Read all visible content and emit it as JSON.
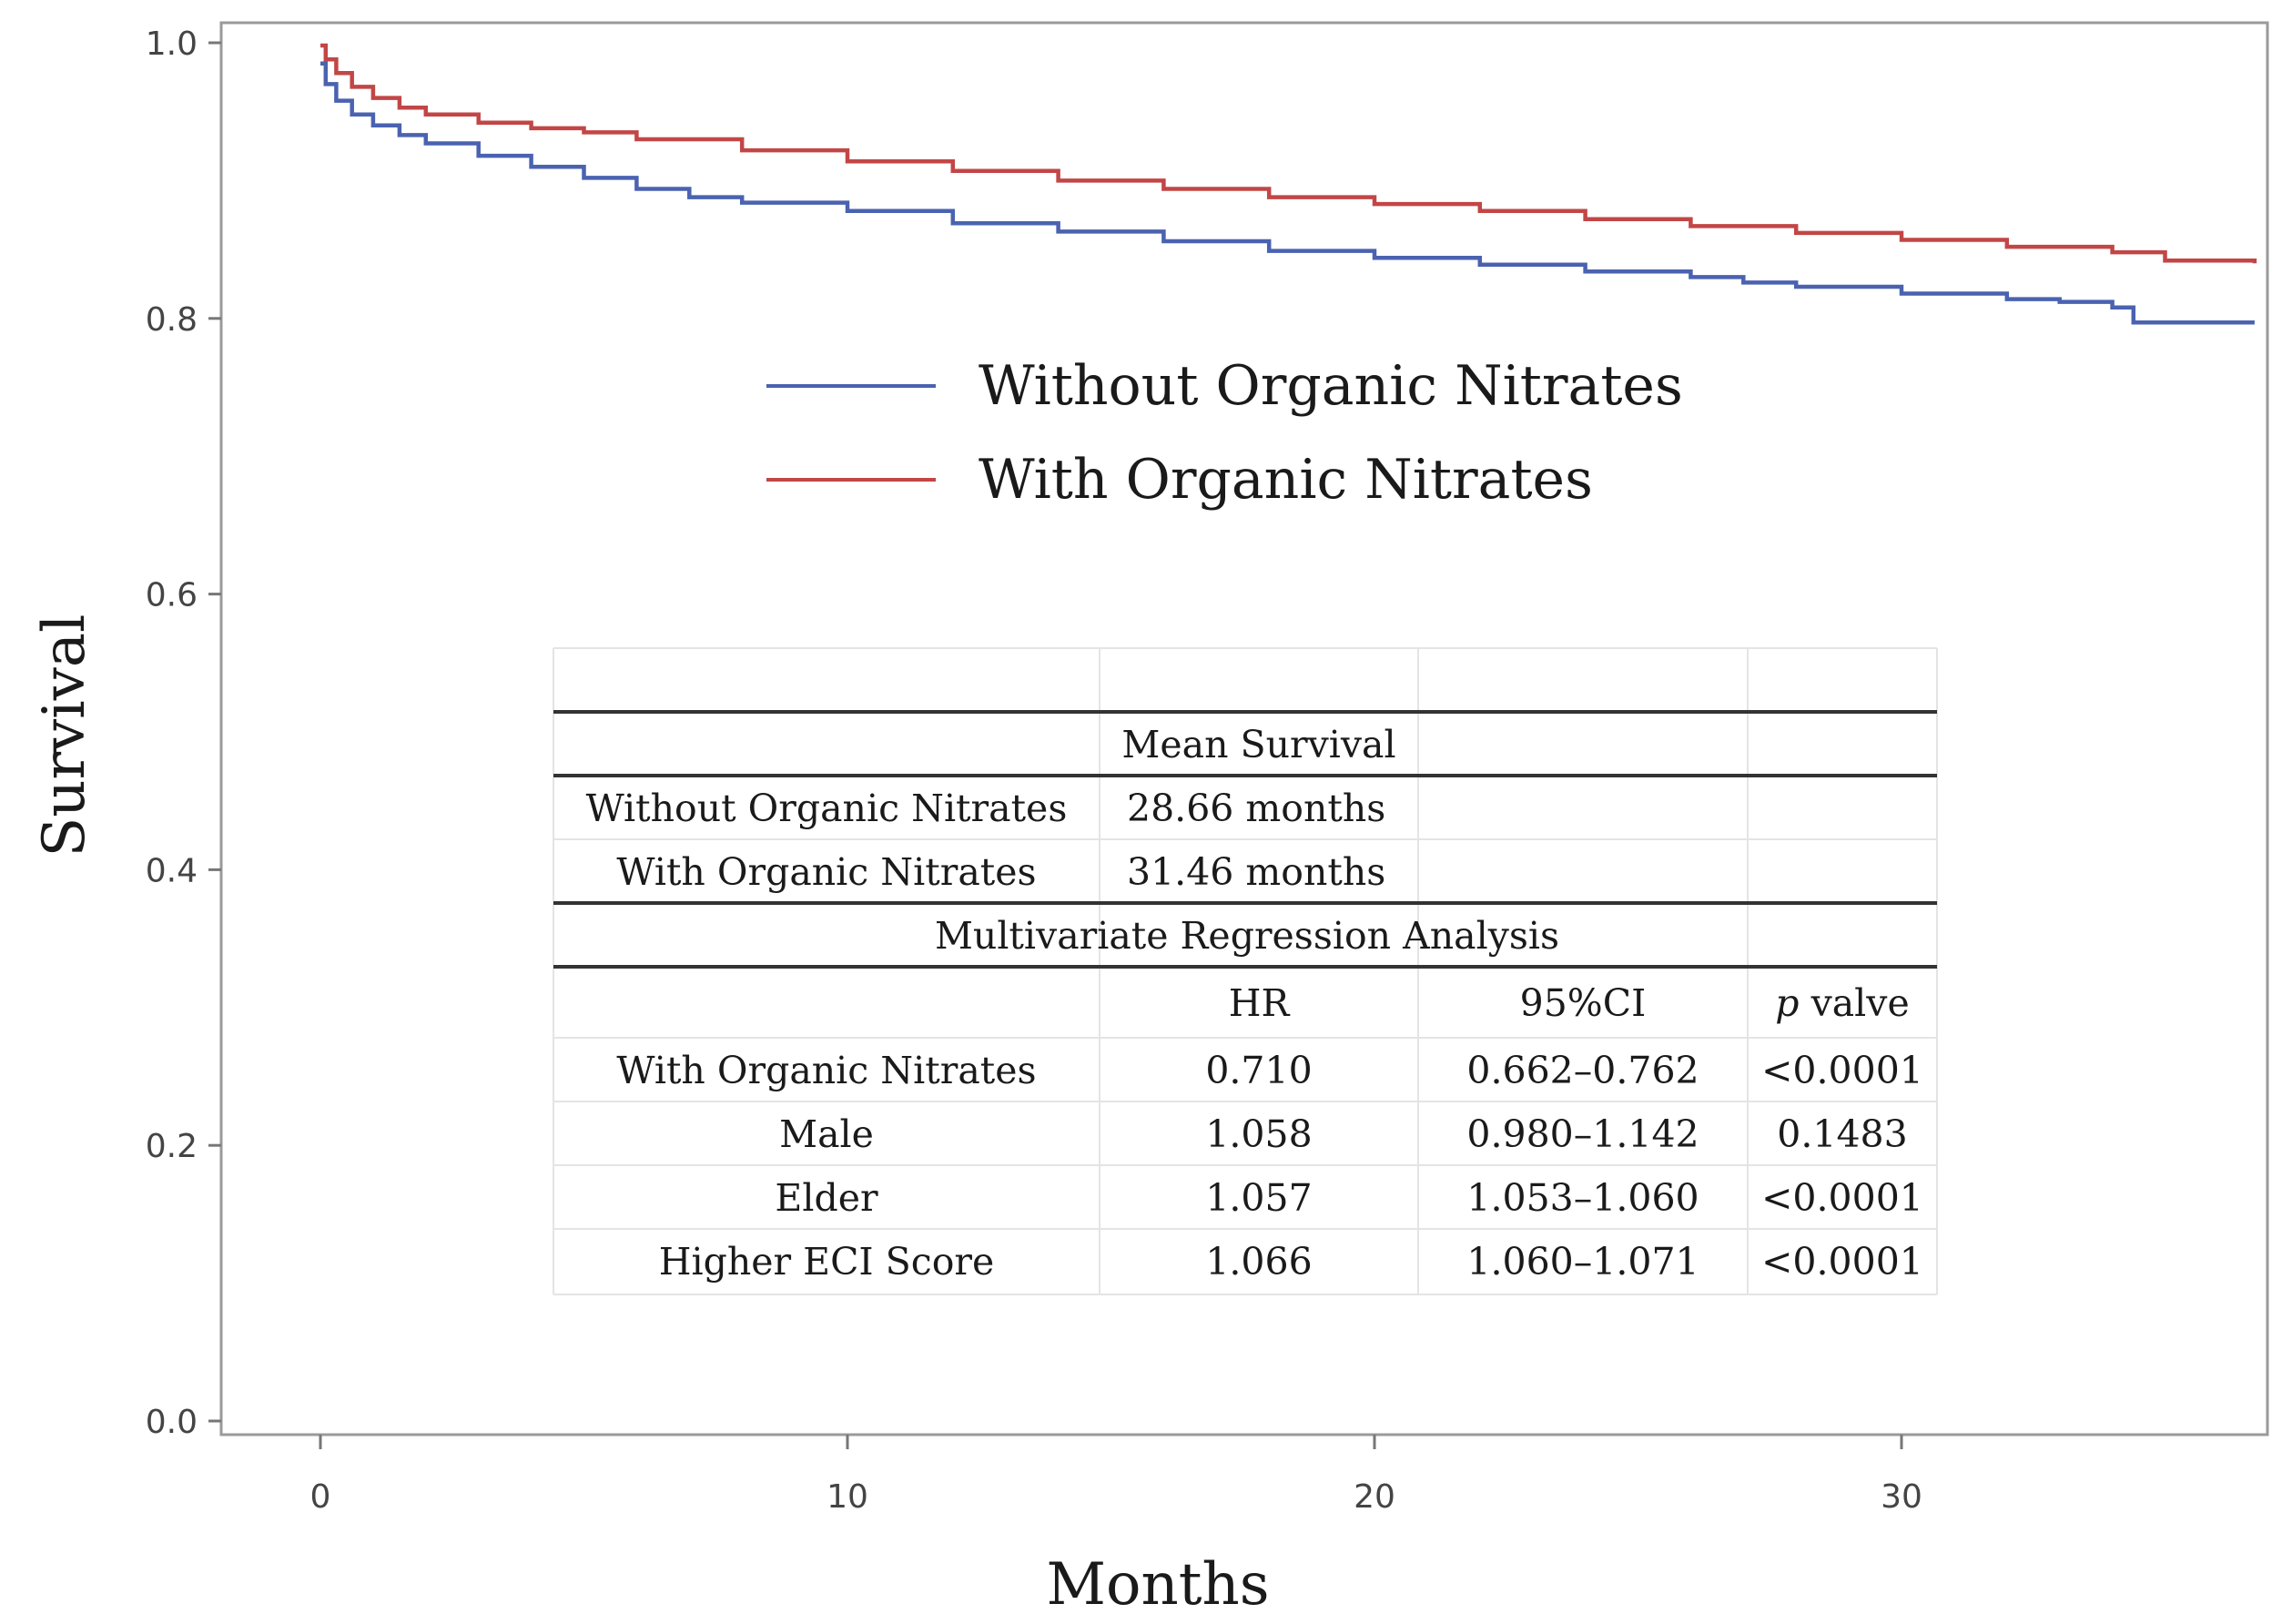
{
  "chart_data": {
    "type": "line",
    "title": "",
    "xlabel": "Months",
    "ylabel": "Survival",
    "xlim": [
      -2,
      37
    ],
    "ylim": [
      0.0,
      1.0
    ],
    "x_ticks": [
      0,
      10,
      20,
      30
    ],
    "x_tick_labels": [
      "0",
      "10",
      "20",
      "30"
    ],
    "y_ticks": [
      0.0,
      0.2,
      0.4,
      0.6,
      0.8,
      1.0
    ],
    "y_tick_labels": [
      "0.0",
      "0.2",
      "0.4",
      "0.6",
      "0.8",
      "1.0"
    ],
    "grid": false,
    "legend_position": "top-center",
    "series": [
      {
        "name": "Without Organic Nitrates",
        "color": "#4a62b0",
        "step": true,
        "x": [
          0,
          0.1,
          0.3,
          0.6,
          1,
          1.5,
          2,
          3,
          4,
          5,
          6,
          7,
          8,
          10,
          12,
          14,
          16,
          18,
          20,
          22,
          24,
          26,
          27,
          28,
          30,
          32,
          33,
          34,
          34.4,
          36.7
        ],
        "y": [
          0.985,
          0.97,
          0.958,
          0.948,
          0.94,
          0.933,
          0.927,
          0.918,
          0.91,
          0.902,
          0.894,
          0.888,
          0.884,
          0.878,
          0.869,
          0.863,
          0.856,
          0.849,
          0.844,
          0.839,
          0.834,
          0.83,
          0.826,
          0.823,
          0.818,
          0.814,
          0.812,
          0.808,
          0.797,
          0.797
        ]
      },
      {
        "name": "With Organic Nitrates",
        "color": "#c24646",
        "step": true,
        "x": [
          0,
          0.1,
          0.3,
          0.6,
          1,
          1.5,
          2,
          3,
          4,
          5,
          6,
          8,
          10,
          12,
          14,
          16,
          18,
          20,
          22,
          24,
          26,
          28,
          30,
          32,
          34,
          35,
          36.7
        ],
        "y": [
          0.998,
          0.988,
          0.978,
          0.968,
          0.96,
          0.953,
          0.948,
          0.942,
          0.938,
          0.935,
          0.93,
          0.922,
          0.914,
          0.907,
          0.9,
          0.894,
          0.888,
          0.883,
          0.878,
          0.872,
          0.867,
          0.862,
          0.857,
          0.852,
          0.848,
          0.842,
          0.84
        ]
      }
    ],
    "table": {
      "section1_header": "Mean Survival",
      "section1_rows": [
        [
          "Without Organic Nitrates",
          "28.66 months"
        ],
        [
          "With Organic Nitrates",
          "31.46 months"
        ]
      ],
      "section2_header": "Multivariate Regression Analysis",
      "columns": [
        "",
        "HR",
        "95%CI",
        "p",
        "valve"
      ],
      "rows": [
        [
          "With Organic Nitrates",
          "0.710",
          "0.662–0.762",
          "<0.0001"
        ],
        [
          "Male",
          "1.058",
          "0.980–1.142",
          "0.1483"
        ],
        [
          "Elder",
          "1.057",
          "1.053–1.060",
          "<0.0001"
        ],
        [
          "Higher ECI Score",
          "1.066",
          "1.060–1.071",
          "<0.0001"
        ]
      ]
    }
  }
}
